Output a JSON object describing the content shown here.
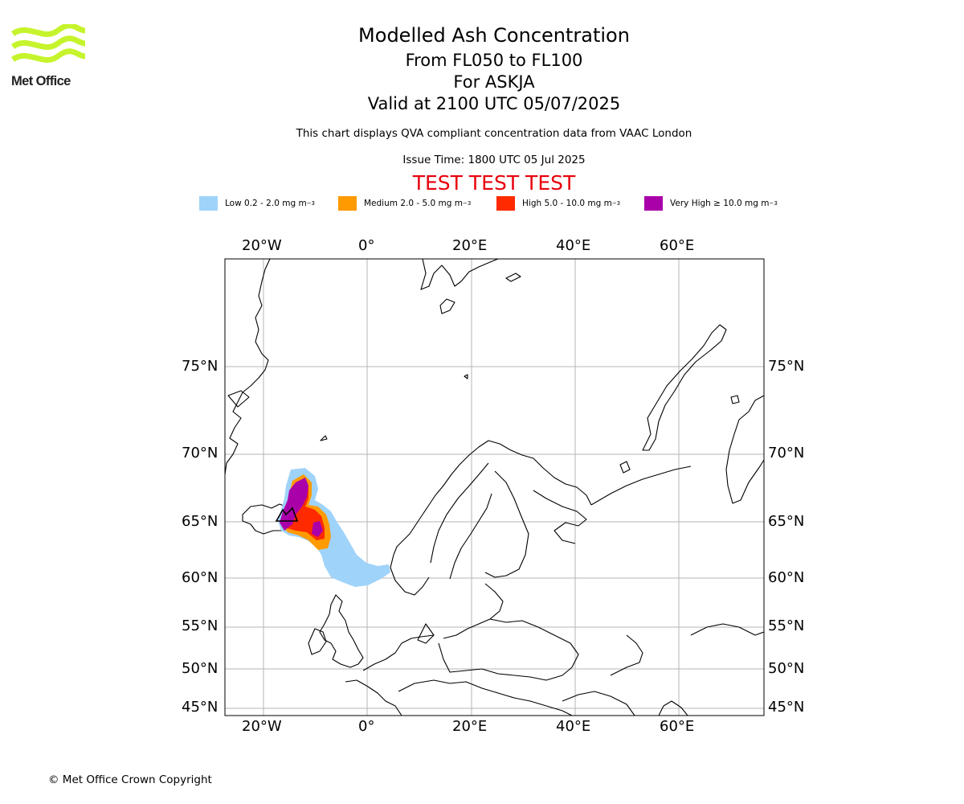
{
  "header": {
    "title": "Modelled Ash Concentration",
    "levels": "From FL050 to FL100",
    "volcano": "For ASKJA",
    "valid": "Valid at 2100 UTC 05/07/2025",
    "note": "This chart displays QVA compliant concentration data from VAAC London",
    "issue_time": "Issue Time: 1800 UTC 05 Jul 2025",
    "test_banner": "TEST TEST TEST"
  },
  "logo": {
    "text": "Met Office",
    "color": "#c6f42c"
  },
  "legend": [
    {
      "label": "Low 0.2 - 2.0 mg m",
      "unit_exp": "−3",
      "color": "#9fd3fa"
    },
    {
      "label": "Medium 2.0 - 5.0 mg m",
      "unit_exp": "−3",
      "color": "#ff9a00"
    },
    {
      "label": "High 5.0 - 10.0 mg m",
      "unit_exp": "−3",
      "color": "#ff2a00"
    },
    {
      "label": "Very High  ≥  10.0 mg m",
      "unit_exp": "−3",
      "color": "#aa00aa"
    }
  ],
  "map": {
    "lon_ticks_top": [
      "20°W",
      "0°",
      "20°E",
      "40°E",
      "60°E"
    ],
    "lon_ticks_bottom": [
      "20°W",
      "0°",
      "20°E",
      "40°E",
      "60°E"
    ],
    "lat_ticks_left": [
      "75°N",
      "70°N",
      "65°N",
      "60°N",
      "55°N",
      "50°N",
      "45°N"
    ],
    "lat_ticks_right": [
      "75°N",
      "70°N",
      "65°N",
      "60°N",
      "55°N",
      "50°N",
      "45°N"
    ],
    "lon_values": [
      -20,
      0,
      20,
      40,
      60
    ],
    "lat_values": [
      75,
      70,
      65,
      60,
      55,
      50,
      45
    ],
    "grid": true
  },
  "footer": {
    "copyright": "© Met Office Crown Copyright"
  }
}
